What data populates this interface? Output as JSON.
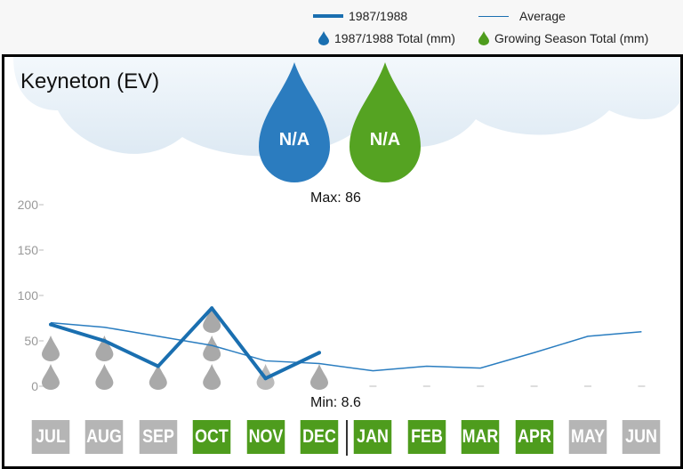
{
  "legend": {
    "season_line": "1987/1988",
    "average_line": "Average",
    "season_total": "1987/1988 Total (mm)",
    "growing_total": "Growing Season Total (mm)"
  },
  "station": "Keyneton (EV)",
  "totals": {
    "season_value": "N/A",
    "growing_value": "N/A"
  },
  "max_label": "Max: 86",
  "min_label": "Min: 8.6",
  "colors": {
    "blue": "#1a6fb0",
    "green": "#4e9c1d",
    "gray": "#b5b5b5"
  },
  "chart_data": {
    "type": "line",
    "categories": [
      "JUL",
      "AUG",
      "SEP",
      "OCT",
      "NOV",
      "DEC",
      "JAN",
      "FEB",
      "MAR",
      "APR",
      "MAY",
      "JUN"
    ],
    "growing_season": [
      false,
      false,
      false,
      true,
      true,
      true,
      true,
      true,
      true,
      true,
      false,
      false
    ],
    "series": [
      {
        "name": "1987/1988",
        "values": [
          68,
          50,
          22,
          86,
          8.6,
          37,
          null,
          null,
          null,
          null,
          null,
          null
        ]
      },
      {
        "name": "Average",
        "values": [
          70,
          65,
          55,
          45,
          28,
          25,
          17,
          22,
          20,
          37,
          55,
          60
        ]
      }
    ],
    "yticks": [
      "0",
      "50",
      "100",
      "150",
      "200"
    ],
    "ylim": [
      0,
      200
    ],
    "ylabel": "",
    "xlabel": ""
  }
}
